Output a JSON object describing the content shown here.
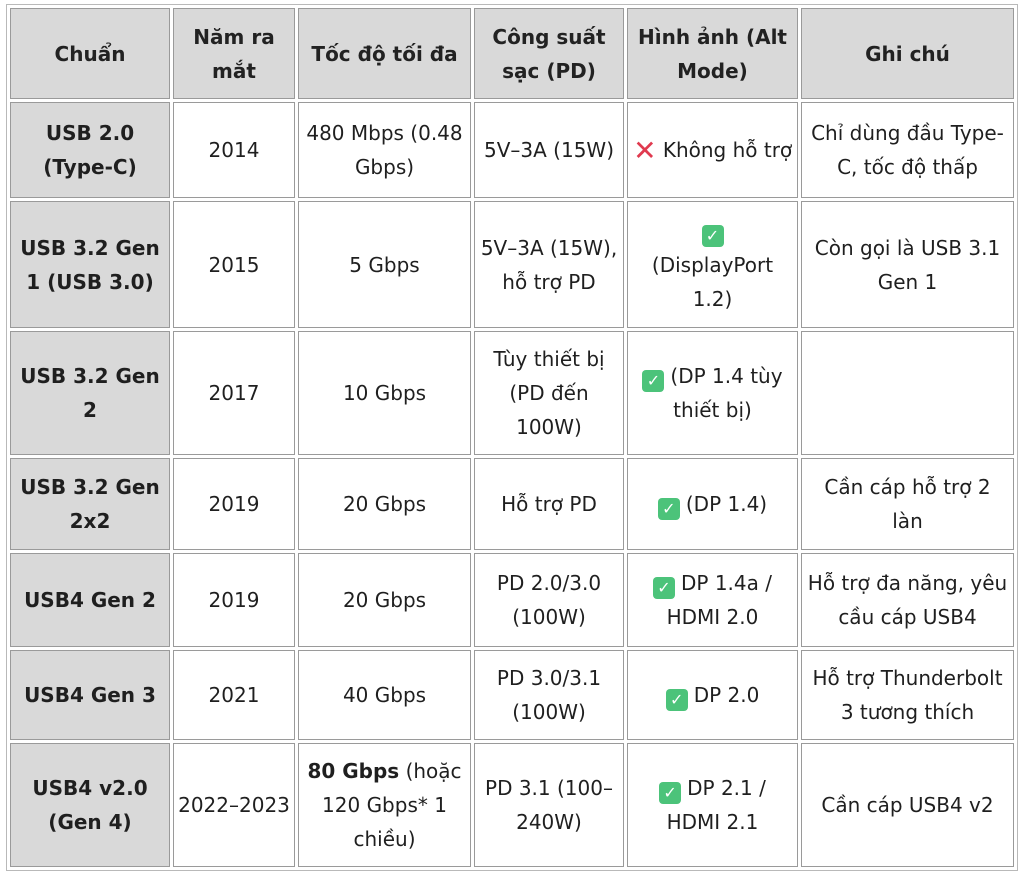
{
  "headers": [
    "Chuẩn",
    "Năm ra mắt",
    "Tốc độ tối đa",
    "Công suất sạc (PD)",
    "Hình ảnh (Alt Mode)",
    "Ghi chú"
  ],
  "rows": [
    {
      "std": "USB 2.0 (Type-C)",
      "year": "2014",
      "speed": "480 Mbps (0.48 Gbps)",
      "power": "5V–3A (15W)",
      "alt": "Không hỗ trợ",
      "alt_icon": "cross-icon",
      "note": "Chỉ dùng đầu Type-C, tốc độ thấp"
    },
    {
      "std": "USB 3.2 Gen 1 (USB 3.0)",
      "year": "2015",
      "speed": "5 Gbps",
      "power": "5V–3A (15W), hỗ trợ PD",
      "alt": "(DisplayPort 1.2)",
      "alt_icon": "check-icon",
      "note": "Còn gọi là USB 3.1 Gen 1"
    },
    {
      "std": "USB 3.2 Gen 2",
      "year": "2017",
      "speed": "10 Gbps",
      "power": "Tùy thiết bị (PD đến 100W)",
      "alt": "(DP 1.4 tùy thiết bị)",
      "alt_icon": "check-icon",
      "note": ""
    },
    {
      "std": "USB 3.2 Gen 2x2",
      "year": "2019",
      "speed": "20 Gbps",
      "power": "Hỗ trợ PD",
      "alt": "(DP 1.4)",
      "alt_icon": "check-icon",
      "note": "Cần cáp hỗ trợ 2 làn"
    },
    {
      "std": "USB4 Gen 2",
      "year": "2019",
      "speed": "20 Gbps",
      "power": "PD 2.0/3.0 (100W)",
      "alt": "DP 1.4a / HDMI 2.0",
      "alt_icon": "check-icon",
      "note": "Hỗ trợ đa năng, yêu cầu cáp USB4"
    },
    {
      "std": "USB4 Gen 3",
      "year": "2021",
      "speed": "40 Gbps",
      "power": "PD 3.0/3.1 (100W)",
      "alt": "DP 2.0",
      "alt_icon": "check-icon",
      "note": "Hỗ trợ Thunderbolt 3 tương thích"
    },
    {
      "std": "USB4 v2.0 (Gen 4)",
      "year": "2022–2023",
      "speed_bold": "80 Gbps",
      "speed": "(hoặc 120 Gbps* 1 chiều)",
      "power": "PD 3.1 (100–240W)",
      "alt": "DP 2.1 / HDMI 2.1",
      "alt_icon": "check-icon",
      "note": "Cần cáp USB4 v2"
    }
  ],
  "colors": {
    "header_bg": "#d9d9d9",
    "check": "#4cc37a",
    "cross": "#e03a4f"
  }
}
